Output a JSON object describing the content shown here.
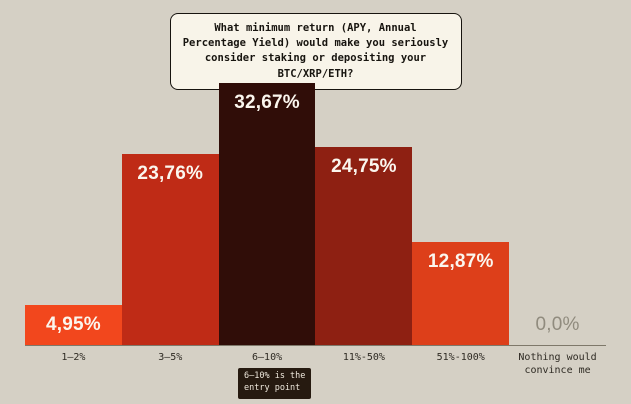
{
  "background": "#d5d0c5",
  "chart_data": {
    "type": "bar",
    "title": "What minimum return (APY, Annual Percentage Yield) would make you seriously consider staking or depositing your BTC/XRP/ETH?",
    "categories": [
      "1–2%",
      "3–5%",
      "6–10%",
      "11%-50%",
      "51%-100%",
      "Nothing would convince me"
    ],
    "values": [
      4.95,
      23.76,
      32.67,
      24.75,
      12.87,
      0.0
    ],
    "value_labels": [
      "4,95%",
      "23,76%",
      "32,67%",
      "24,75%",
      "12,87%",
      "0,0%"
    ],
    "bar_colors": [
      "#f2471d",
      "#bf2b16",
      "#300d08",
      "#8e2012",
      "#dd3f1a",
      null
    ],
    "ylim": [
      0,
      32.67
    ],
    "xlabel": "",
    "ylabel": "",
    "grid": false,
    "legend": "none",
    "zero_label_color": "#908b7e",
    "annotation": {
      "target_category": "6–10%",
      "lines": [
        "6–10% is the",
        "entry point"
      ]
    }
  }
}
